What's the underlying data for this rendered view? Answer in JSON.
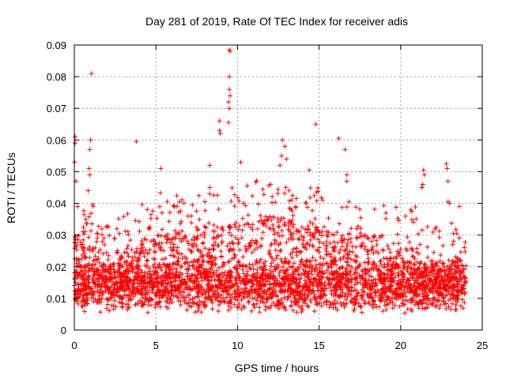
{
  "chart_data": {
    "type": "scatter",
    "title": "Day 281 of 2019, Rate Of TEC Index for receiver adis",
    "xlabel": "GPS time / hours",
    "ylabel": "ROTI / TECUs",
    "xlim": [
      0,
      25
    ],
    "ylim": [
      0,
      0.09
    ],
    "x_ticks": [
      0,
      5,
      10,
      15,
      20,
      25
    ],
    "x_tick_labels": [
      "0",
      "5",
      "10",
      "15",
      "20",
      "25"
    ],
    "y_ticks": [
      0,
      0.01,
      0.02,
      0.03,
      0.04,
      0.05,
      0.06,
      0.07,
      0.08,
      0.09
    ],
    "y_tick_labels": [
      "0",
      "0.01",
      "0.02",
      "0.03",
      "0.04",
      "0.05",
      "0.06",
      "0.07",
      "0.08",
      "0.09"
    ],
    "grid": true,
    "marker": "+",
    "color": "#ff0000",
    "series": [
      {
        "name": "ROTI",
        "x_range": [
          0,
          24
        ],
        "typical_range": [
          0.005,
          0.025
        ],
        "outliers": [
          [
            0.05,
            0.061
          ],
          [
            0.05,
            0.059
          ],
          [
            0.02,
            0.053
          ],
          [
            0.1,
            0.047
          ],
          [
            1.05,
            0.081
          ],
          [
            1.0,
            0.06
          ],
          [
            0.95,
            0.057
          ],
          [
            0.9,
            0.051
          ],
          [
            0.95,
            0.049
          ],
          [
            0.85,
            0.044
          ],
          [
            0.7,
            0.035
          ],
          [
            3.8,
            0.0595
          ],
          [
            5.3,
            0.051
          ],
          [
            8.3,
            0.052
          ],
          [
            8.3,
            0.045
          ],
          [
            8.3,
            0.043
          ],
          [
            8.9,
            0.066
          ],
          [
            8.9,
            0.063
          ],
          [
            8.95,
            0.062
          ],
          [
            9.5,
            0.0885
          ],
          [
            9.55,
            0.088
          ],
          [
            9.5,
            0.08
          ],
          [
            9.5,
            0.076
          ],
          [
            9.55,
            0.074
          ],
          [
            9.45,
            0.072
          ],
          [
            9.5,
            0.07
          ],
          [
            9.45,
            0.0655
          ],
          [
            10.2,
            0.053
          ],
          [
            12.75,
            0.06
          ],
          [
            12.9,
            0.058
          ],
          [
            12.7,
            0.055
          ],
          [
            13.0,
            0.054
          ],
          [
            12.6,
            0.052
          ],
          [
            14.4,
            0.0505
          ],
          [
            14.8,
            0.065
          ],
          [
            16.2,
            0.0605
          ],
          [
            16.6,
            0.057
          ],
          [
            16.7,
            0.049
          ],
          [
            16.7,
            0.047
          ],
          [
            21.4,
            0.0505
          ],
          [
            21.45,
            0.049
          ],
          [
            21.35,
            0.046
          ],
          [
            21.3,
            0.045
          ],
          [
            22.8,
            0.0525
          ],
          [
            22.85,
            0.051
          ],
          [
            22.9,
            0.047
          ],
          [
            23.0,
            0.04
          ],
          [
            22.9,
            0.0405
          ],
          [
            23.6,
            0.039
          ]
        ]
      }
    ]
  }
}
